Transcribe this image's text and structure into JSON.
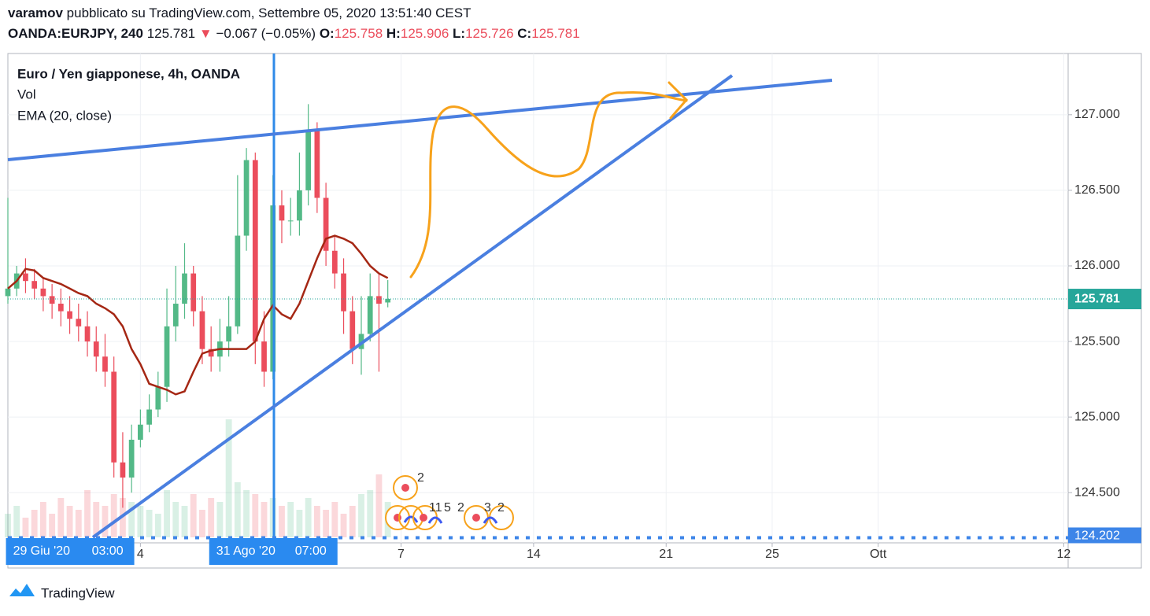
{
  "header": {
    "user": "varamov",
    "published": "pubblicato su TradingView.com, Settembre 05, 2020 13:51:40 CEST",
    "symbol": "OANDA:EURJPY, 240",
    "last": "125.781",
    "direction": "▼",
    "change": "−0.067 (−0.05%)",
    "open_label": "O:",
    "open": "125.758",
    "high_label": "H:",
    "high": "125.906",
    "low_label": "L:",
    "low": "125.726",
    "close_label": "C:",
    "close": "125.781"
  },
  "chart_data": {
    "type": "candlestick",
    "title": "Euro / Yen giapponese, 4h, OANDA",
    "up_color": "#53b987",
    "down_color": "#eb4d5c",
    "x": [
      0,
      2,
      4,
      6,
      8,
      10,
      12,
      14,
      16,
      18,
      20,
      22,
      24,
      26,
      28,
      30,
      32,
      34,
      36,
      38,
      40,
      42,
      44,
      46,
      48,
      50,
      52,
      54,
      56,
      58,
      60,
      62,
      64,
      66,
      68,
      70,
      72,
      74,
      76,
      78,
      80,
      82,
      84,
      86
    ],
    "candles": {
      "open": [
        125.8,
        125.85,
        125.95,
        125.9,
        125.85,
        125.8,
        125.75,
        125.7,
        125.65,
        125.6,
        125.5,
        125.4,
        125.3,
        124.7,
        124.6,
        124.85,
        124.95,
        125.05,
        125.2,
        125.6,
        125.75,
        125.95,
        125.7,
        125.45,
        125.4,
        125.5,
        125.6,
        126.2,
        126.7,
        125.5,
        125.3,
        126.4,
        126.3,
        126.3,
        126.5,
        126.9,
        126.45,
        126.1,
        125.95,
        125.7,
        125.45,
        125.55,
        125.8,
        125.758
      ],
      "high": [
        126.45,
        126.0,
        126.05,
        125.98,
        125.92,
        125.88,
        125.85,
        125.8,
        125.75,
        125.7,
        125.6,
        125.55,
        125.4,
        124.9,
        124.95,
        125.05,
        125.15,
        125.3,
        125.85,
        126.0,
        126.15,
        126.0,
        125.8,
        125.6,
        125.65,
        125.8,
        126.6,
        126.78,
        126.75,
        125.7,
        126.6,
        126.5,
        126.45,
        126.75,
        127.07,
        126.95,
        126.55,
        126.2,
        126.05,
        125.8,
        125.8,
        125.95,
        125.95,
        125.906
      ],
      "low": [
        125.75,
        125.8,
        125.82,
        125.78,
        125.7,
        125.65,
        125.6,
        125.55,
        125.5,
        125.4,
        125.3,
        125.2,
        124.6,
        124.4,
        124.5,
        124.8,
        124.9,
        125.0,
        125.1,
        125.5,
        125.65,
        125.6,
        125.35,
        125.3,
        125.3,
        125.4,
        125.55,
        126.1,
        125.35,
        125.2,
        125.25,
        126.15,
        126.2,
        126.2,
        126.4,
        126.35,
        126.0,
        125.85,
        125.55,
        125.35,
        125.28,
        125.5,
        125.3,
        125.726
      ],
      "close": [
        125.85,
        125.95,
        125.9,
        125.85,
        125.8,
        125.75,
        125.7,
        125.65,
        125.6,
        125.5,
        125.4,
        125.3,
        124.7,
        124.6,
        124.85,
        124.95,
        125.05,
        125.2,
        125.6,
        125.75,
        125.95,
        125.7,
        125.45,
        125.4,
        125.5,
        125.6,
        126.2,
        126.7,
        125.5,
        125.3,
        126.4,
        126.3,
        126.3,
        126.5,
        126.9,
        126.45,
        126.1,
        125.95,
        125.7,
        125.45,
        125.55,
        125.8,
        125.75,
        125.781
      ]
    },
    "volume": {
      "name": "Vol",
      "values": [
        30,
        40,
        25,
        35,
        45,
        30,
        50,
        40,
        35,
        60,
        45,
        40,
        55,
        50,
        45,
        40,
        35,
        30,
        60,
        45,
        40,
        55,
        35,
        50,
        45,
        150,
        70,
        60,
        55,
        45,
        50,
        40,
        45,
        35,
        50,
        40,
        35,
        45,
        30,
        40,
        55,
        60,
        80,
        45
      ]
    },
    "ema": {
      "name": "EMA (20, close)",
      "color": "#a52714",
      "values": [
        125.85,
        125.9,
        125.98,
        125.97,
        125.92,
        125.9,
        125.88,
        125.85,
        125.82,
        125.8,
        125.75,
        125.72,
        125.68,
        125.6,
        125.45,
        125.35,
        125.22,
        125.2,
        125.18,
        125.15,
        125.17,
        125.3,
        125.42,
        125.44,
        125.45,
        125.45,
        125.45,
        125.45,
        125.5,
        125.65,
        125.74,
        125.68,
        125.65,
        125.75,
        125.9,
        126.05,
        126.18,
        126.2,
        126.18,
        126.15,
        126.08,
        126.0,
        125.95,
        125.92
      ]
    },
    "xlim": [
      0,
      240
    ],
    "xticks": [
      {
        "value": 30,
        "label": "4"
      },
      {
        "value": 89,
        "label": "7"
      },
      {
        "value": 119,
        "label": "14"
      },
      {
        "value": 149,
        "label": "21"
      },
      {
        "value": 173,
        "label": "25"
      },
      {
        "value": 197,
        "label": "Ott"
      },
      {
        "value": 239,
        "label": "12"
      }
    ],
    "highlighted_x": [
      {
        "value": 14,
        "date": "29 Giu '20",
        "time": "03:00"
      },
      {
        "value": 60,
        "date": "31 Ago '20",
        "time": "07:00"
      }
    ],
    "ylim": [
      124.168,
      127.405
    ],
    "yticks": [
      {
        "value": 127,
        "label": "127.000"
      },
      {
        "value": 126.5,
        "label": "126.500"
      },
      {
        "value": 126,
        "label": "126.000"
      },
      {
        "value": 125.5,
        "label": "125.500"
      },
      {
        "value": 125,
        "label": "125.000"
      },
      {
        "value": 124.5,
        "label": "124.500"
      }
    ],
    "last_price": 125.781,
    "last_price_color": "#26a69a",
    "level": 124.202,
    "level_color": "#3d85e8",
    "grid": true,
    "events": [
      "2",
      "11",
      "5",
      "2",
      "3",
      "2"
    ]
  },
  "footer": {
    "brand": "TradingView"
  }
}
